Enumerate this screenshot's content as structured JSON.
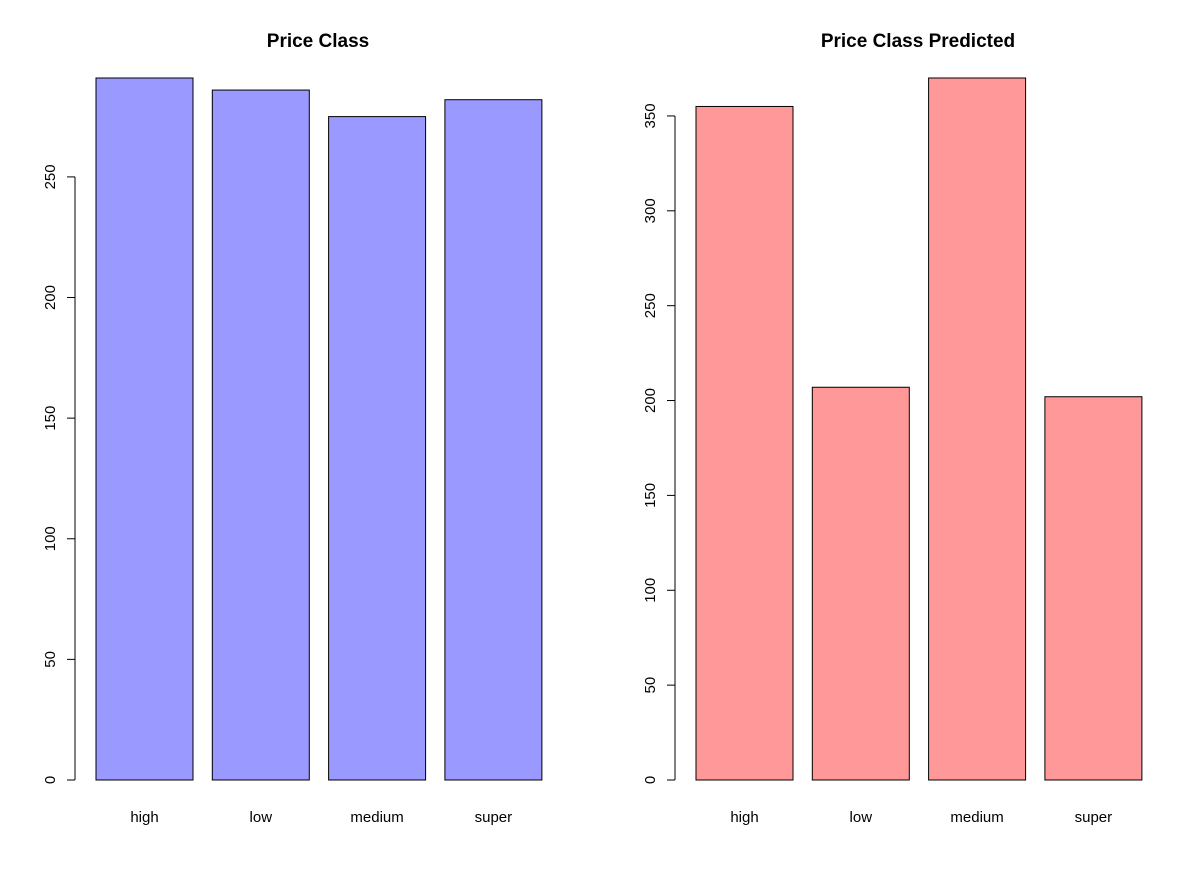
{
  "chart_data": [
    {
      "type": "bar",
      "title": "Price Class",
      "xlabel": "",
      "ylabel": "",
      "categories": [
        "high",
        "low",
        "medium",
        "super"
      ],
      "values": [
        291,
        286,
        275,
        282
      ],
      "yticks": [
        0,
        50,
        100,
        150,
        200,
        250
      ],
      "ylim": [
        0,
        291
      ],
      "bar_color": "#9999ff",
      "grid": false,
      "legend": "none"
    },
    {
      "type": "bar",
      "title": "Price Class Predicted",
      "xlabel": "",
      "ylabel": "",
      "categories": [
        "high",
        "low",
        "medium",
        "super"
      ],
      "values": [
        355,
        207,
        370,
        202
      ],
      "yticks": [
        0,
        50,
        100,
        150,
        200,
        250,
        300,
        350
      ],
      "ylim": [
        0,
        370
      ],
      "bar_color": "#ff9999",
      "grid": false,
      "legend": "none"
    }
  ]
}
